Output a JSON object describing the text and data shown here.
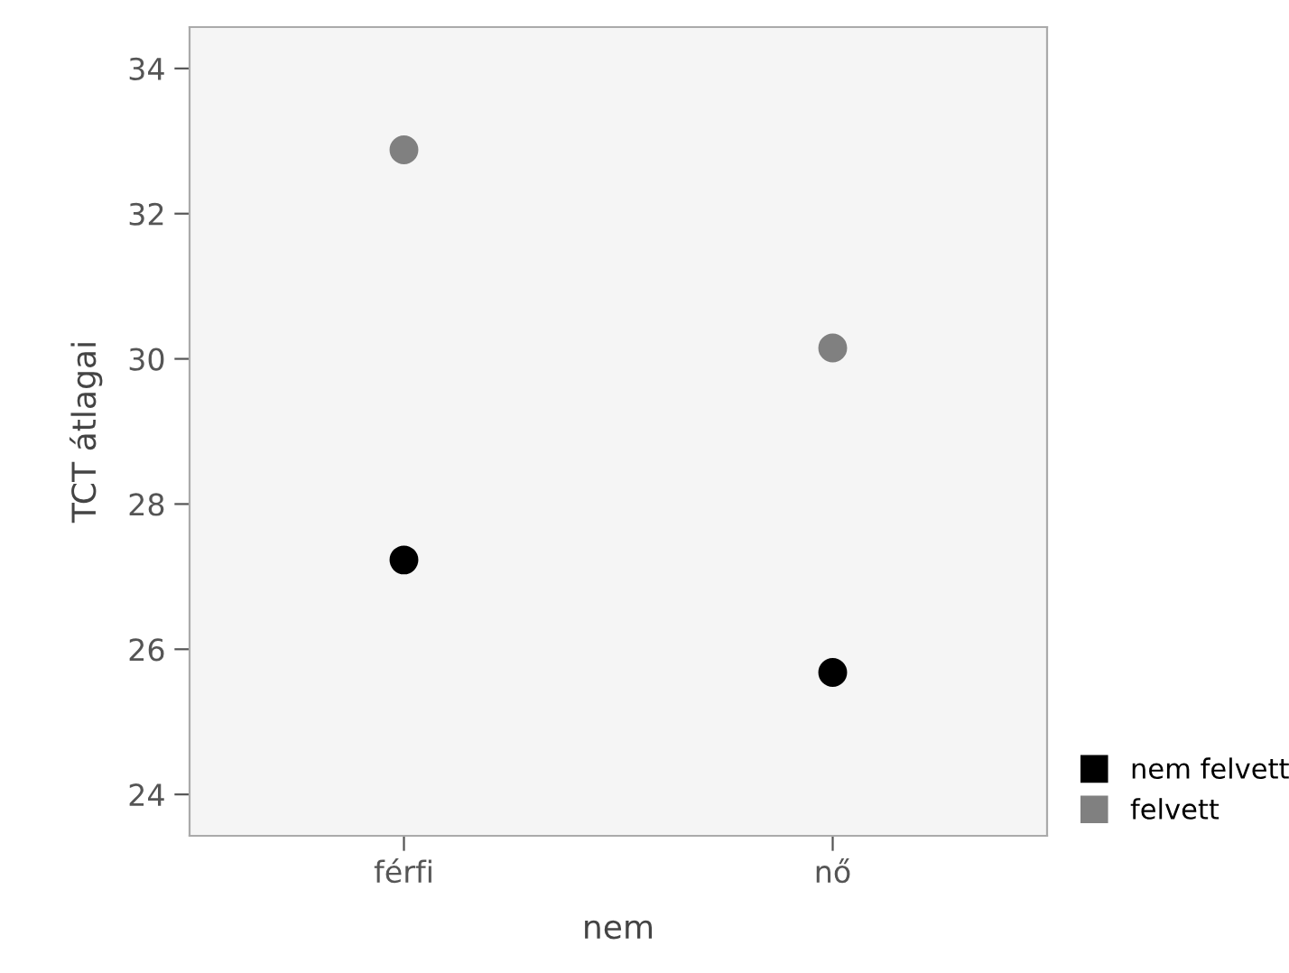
{
  "chart_data": {
    "type": "scatter",
    "xlabel": "nem",
    "ylabel": "TCT átlagai",
    "categories": [
      "férfi",
      "nő"
    ],
    "series": [
      {
        "name": "nem felvett",
        "color": "#000000",
        "values": [
          27.23,
          25.68
        ]
      },
      {
        "name": "felvett",
        "color": "#808080",
        "values": [
          32.88,
          30.15
        ]
      }
    ],
    "ylim": [
      23.43,
      34.57
    ],
    "yticks": [
      24,
      26,
      28,
      30,
      32,
      34
    ],
    "grid": false,
    "legend": "bottom right",
    "marker": "circle"
  }
}
